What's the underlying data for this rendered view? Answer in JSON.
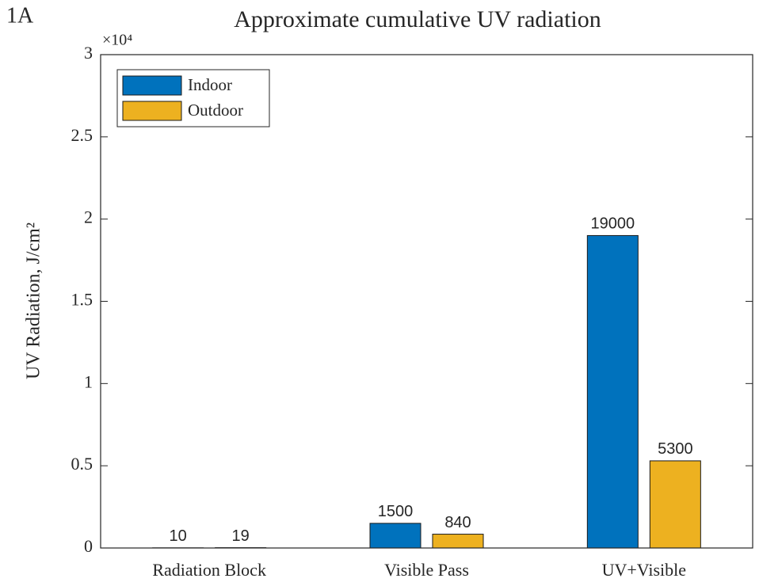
{
  "chart_data": {
    "type": "bar",
    "panel_label": "1A",
    "title": "Approximate cumulative UV radiation",
    "ylabel": "UV Radiation, J/cm²",
    "y_multiplier": "×10⁴",
    "categories": [
      "Radiation Block",
      "Visible Pass",
      "UV+Visible"
    ],
    "series": [
      {
        "name": "Indoor",
        "color": "#0072BD",
        "values": [
          10,
          1500,
          19000
        ]
      },
      {
        "name": "Outdoor",
        "color": "#EDB120",
        "values": [
          19,
          840,
          5300
        ]
      }
    ],
    "ylim": [
      0,
      30000
    ],
    "yticks": [
      0,
      {
        "value": 5000,
        "label": "0.5"
      },
      {
        "value": 10000,
        "label": "1"
      },
      {
        "value": 15000,
        "label": "1.5"
      },
      {
        "value": 20000,
        "label": "2"
      },
      {
        "value": 25000,
        "label": "2.5"
      },
      {
        "value": 30000,
        "label": "3"
      }
    ],
    "grid": false,
    "legend": "upper-left"
  }
}
